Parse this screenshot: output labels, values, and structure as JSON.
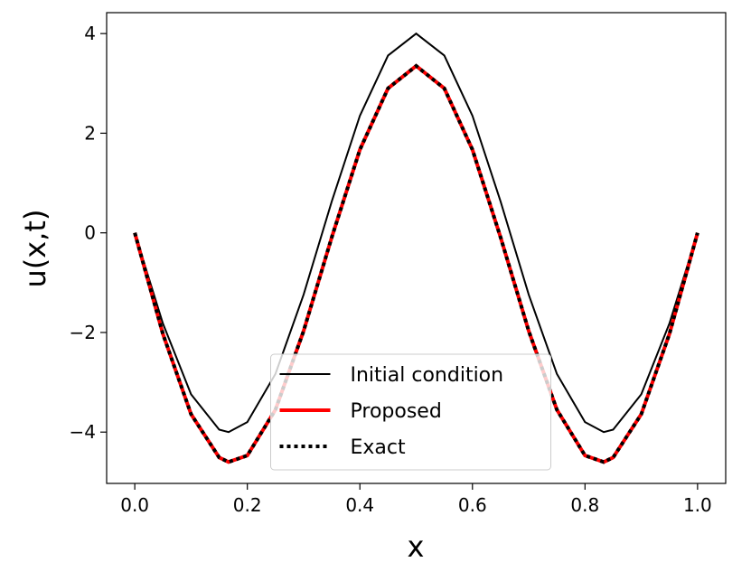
{
  "chart_data": {
    "type": "line",
    "xlabel": "x",
    "ylabel": "u(x,t)",
    "x": [
      0,
      0.05,
      0.1,
      0.15,
      0.1667,
      0.2,
      0.25,
      0.3,
      0.35,
      0.4,
      0.45,
      0.5,
      0.55,
      0.6,
      0.65,
      0.7,
      0.75,
      0.8,
      0.8333,
      0.85,
      0.9,
      0.95,
      1.0
    ],
    "series": [
      {
        "name": "Initial condition",
        "color": "#000000",
        "style": "solid",
        "width": 2,
        "values": [
          0,
          -1.82,
          -3.24,
          -3.95,
          -4,
          -3.8,
          -2.83,
          -1.24,
          0.63,
          2.35,
          3.56,
          4,
          3.56,
          2.35,
          0.63,
          -1.24,
          -2.83,
          -3.8,
          -4,
          -3.95,
          -3.24,
          -1.82,
          0
        ]
      },
      {
        "name": "Proposed",
        "color": "#ff0000",
        "style": "solid",
        "width": 4,
        "values": [
          0,
          -2.03,
          -3.64,
          -4.51,
          -4.6,
          -4.47,
          -3.55,
          -1.97,
          -0.09,
          1.67,
          2.9,
          3.35,
          2.9,
          1.67,
          -0.09,
          -1.97,
          -3.55,
          -4.47,
          -4.6,
          -4.51,
          -3.64,
          -2.03,
          0
        ]
      },
      {
        "name": "Exact",
        "color": "#000000",
        "style": "dotted",
        "width": 4,
        "values": [
          0,
          -2.03,
          -3.64,
          -4.51,
          -4.6,
          -4.47,
          -3.55,
          -1.97,
          -0.09,
          1.67,
          2.9,
          3.35,
          2.9,
          1.67,
          -0.09,
          -1.97,
          -3.55,
          -4.47,
          -4.6,
          -4.51,
          -3.64,
          -2.03,
          0
        ]
      }
    ],
    "xlim": [
      -0.05,
      1.05
    ],
    "xticks": [
      {
        "value": 0,
        "label": "0.0"
      },
      {
        "value": 0.2,
        "label": "0.2"
      },
      {
        "value": 0.4,
        "label": "0.4"
      },
      {
        "value": 0.6,
        "label": "0.6"
      },
      {
        "value": 0.8,
        "label": "0.8"
      },
      {
        "value": 1,
        "label": "1.0"
      }
    ],
    "ylim": [
      -5.03,
      4.42
    ],
    "yticks": [
      {
        "value": -4,
        "label": "−4"
      },
      {
        "value": -2,
        "label": "−2"
      },
      0,
      2,
      4
    ],
    "legend": "lower center"
  }
}
